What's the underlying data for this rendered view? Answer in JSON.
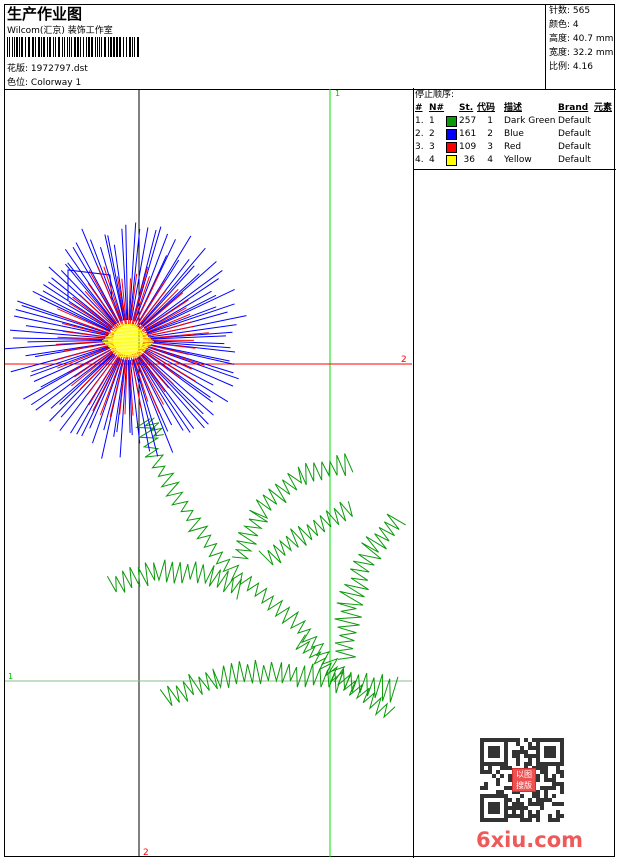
{
  "header": {
    "title": "生产作业图",
    "company": "Wilcom(汇京) 装饰工作室",
    "design_label": "花版:",
    "design_value": "1972797.dst",
    "colorway_label": "色位:",
    "colorway_value": "Colorway 1"
  },
  "stats": [
    {
      "label": "针数:",
      "value": "565"
    },
    {
      "label": "颜色:",
      "value": "4"
    },
    {
      "label": "高度:",
      "value": "40.7 mm"
    },
    {
      "label": "宽度:",
      "value": "32.2 mm"
    },
    {
      "label": "比例:",
      "value": "4.16"
    }
  ],
  "color_table": {
    "title": "停止顺序:",
    "headers": {
      "idx": "#",
      "no": "N#",
      "st": "St.",
      "code": "代码",
      "desc": "描述",
      "brand": "Brand",
      "elem": "元素"
    },
    "rows": [
      {
        "idx": "1.",
        "no": "1",
        "color": "#0a9a0a",
        "st": "257",
        "code": "1",
        "desc": "Dark Green",
        "brand": "Default"
      },
      {
        "idx": "2.",
        "no": "2",
        "color": "#0000ff",
        "st": "161",
        "code": "2",
        "desc": "Blue",
        "brand": "Default"
      },
      {
        "idx": "3.",
        "no": "3",
        "color": "#ff0000",
        "st": "109",
        "code": "3",
        "desc": "Red",
        "brand": "Default"
      },
      {
        "idx": "4.",
        "no": "4",
        "color": "#ffff00",
        "st": "36",
        "code": "4",
        "desc": "Yellow",
        "brand": "Default"
      }
    ]
  },
  "guides": {
    "v_green_label": "1",
    "h_red_label": "2",
    "h_green_label": "1",
    "v_black_label": "2"
  },
  "watermark": {
    "text": "6xiu.com",
    "stamp": "以图搜版"
  }
}
